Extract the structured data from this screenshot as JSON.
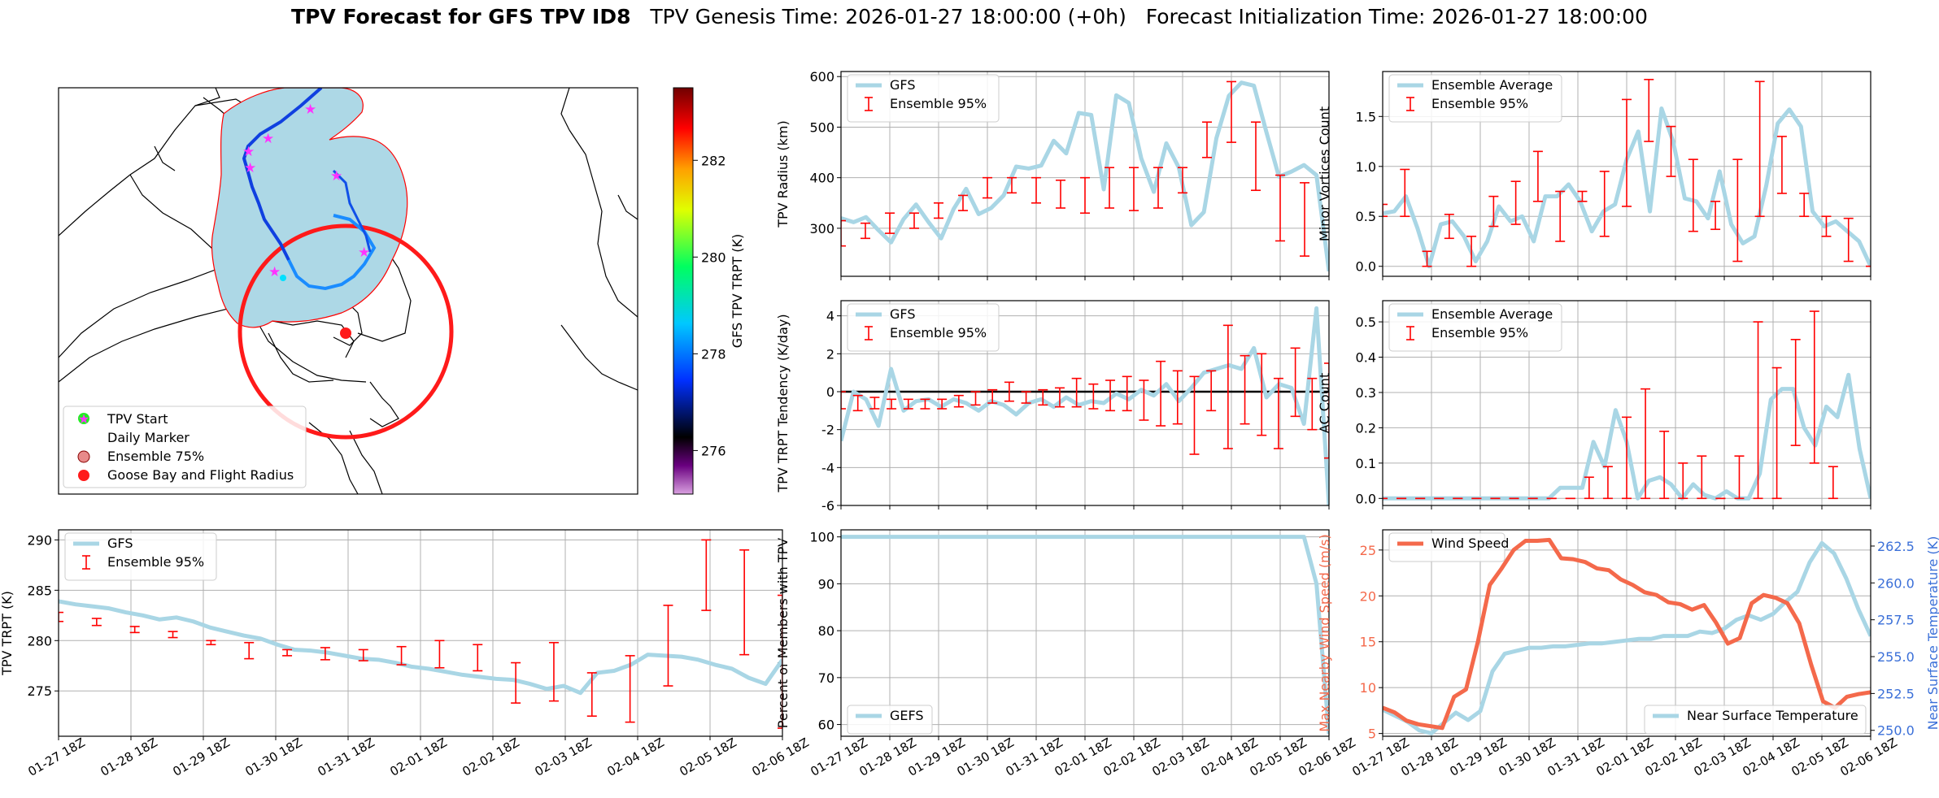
{
  "title": {
    "bold": "TPV Forecast for GFS TPV ID8",
    "genesis": "TPV Genesis Time: 2026-01-27 18:00:00 (+0h)",
    "init": "Forecast Initialization Time: 2026-01-27 18:00:00"
  },
  "colors": {
    "light_blue": "#a9d6e5",
    "red": "#ff0000",
    "orange": "#f4694b",
    "blue": "#3a6fd8"
  },
  "map": {
    "legend": [
      "TPV Start",
      "Daily Marker",
      "Ensemble 75%",
      "Goose Bay and Flight Radius"
    ],
    "colorbar": {
      "label": "GFS TPV TRPT (K)",
      "ticks": [
        "276",
        "278",
        "280",
        "282"
      ],
      "range": [
        275.1,
        283.5
      ]
    }
  },
  "chart_data": [
    {
      "id": "radius",
      "type": "line",
      "ylabel": "TPV Radius (km)",
      "ylim": [
        205,
        610
      ],
      "yticks": [
        300,
        400,
        500,
        600
      ],
      "series_legend": [
        "GFS",
        "Ensemble 95%"
      ],
      "gfs": [
        320,
        312,
        322,
        296,
        272,
        318,
        347,
        312,
        280,
        338,
        378,
        328,
        340,
        365,
        422,
        418,
        424,
        473,
        448,
        528,
        524,
        377,
        563,
        548,
        438,
        372,
        468,
        420,
        306,
        332,
        478,
        562,
        588,
        582,
        490,
        402,
        412,
        425,
        405,
        215
      ],
      "ens_lo": [
        265,
        null,
        280,
        null,
        290,
        null,
        300,
        null,
        320,
        null,
        335,
        null,
        360,
        null,
        370,
        null,
        350,
        null,
        340,
        null,
        330,
        null,
        340,
        null,
        335,
        null,
        340,
        null,
        370,
        null,
        440,
        null,
        470,
        null,
        375,
        null,
        275,
        null,
        245,
        null,
        null
      ],
      "ens_hi": [
        315,
        null,
        310,
        null,
        330,
        null,
        330,
        null,
        350,
        null,
        365,
        null,
        400,
        null,
        400,
        null,
        400,
        null,
        395,
        null,
        400,
        null,
        420,
        null,
        420,
        null,
        420,
        null,
        420,
        null,
        510,
        null,
        590,
        null,
        510,
        null,
        405,
        null,
        390,
        null,
        420
      ]
    },
    {
      "id": "tendency",
      "type": "line",
      "ylabel": "TPV TRPT Tendency (K/day)",
      "ylim": [
        -6,
        4.8
      ],
      "yticks": [
        -6,
        -4,
        -2,
        0,
        2,
        4
      ],
      "series_legend": [
        "GFS",
        "Ensemble 95%"
      ],
      "gfs": [
        -2.6,
        0.0,
        -0.4,
        -1.8,
        1.2,
        -1.0,
        -0.5,
        -0.4,
        -0.8,
        -0.4,
        -0.6,
        -1.0,
        -0.5,
        -0.7,
        -1.2,
        -0.6,
        -0.4,
        -0.8,
        -0.3,
        -0.7,
        -0.5,
        -0.6,
        -0.1,
        -0.4,
        0.1,
        -0.2,
        0.4,
        -0.5,
        0.2,
        1.0,
        1.2,
        1.4,
        1.2,
        2.3,
        -0.3,
        0.4,
        0.2,
        -1.7,
        4.4,
        -6.0
      ],
      "ens_lo": [
        -0.9,
        -1.0,
        -0.9,
        -0.9,
        -0.9,
        -0.9,
        -0.9,
        -0.8,
        -0.7,
        -0.6,
        -0.5,
        -0.6,
        -0.7,
        -0.8,
        -0.8,
        -0.9,
        -1.0,
        -1.0,
        -1.5,
        -1.8,
        -1.7,
        -3.3,
        -1.0,
        -3.0,
        -1.7,
        -2.3,
        -3.0,
        -1.3,
        -2.0,
        -3.5
      ],
      "ens_hi": [
        0.0,
        -0.2,
        -0.3,
        -0.4,
        -0.4,
        -0.4,
        -0.4,
        -0.2,
        0.0,
        0.1,
        0.5,
        0.0,
        0.1,
        0.2,
        0.7,
        0.4,
        0.6,
        0.8,
        0.6,
        1.6,
        1.1,
        0.8,
        1.1,
        3.5,
        1.9,
        2.0,
        0.7,
        2.3,
        0.7,
        1.5
      ],
      "zero_line": 0
    },
    {
      "id": "members",
      "type": "line",
      "ylabel": "Percent of Members with TPV",
      "ylim": [
        57.5,
        101.5
      ],
      "yticks": [
        60,
        70,
        80,
        90,
        100
      ],
      "series_legend": [
        "GEFS"
      ],
      "gefs": [
        100,
        100,
        100,
        100,
        100,
        100,
        100,
        100,
        100,
        100,
        100,
        100,
        100,
        100,
        100,
        100,
        100,
        100,
        100,
        100,
        100,
        100,
        100,
        100,
        100,
        100,
        100,
        100,
        100,
        100,
        100,
        100,
        100,
        100,
        100,
        100,
        100,
        100,
        90,
        58
      ]
    },
    {
      "id": "minor",
      "type": "line",
      "ylabel": "Minor Vortices Count",
      "ylim": [
        -0.1,
        1.95
      ],
      "yticks": [
        0.0,
        0.5,
        1.0,
        1.5
      ],
      "series_legend": [
        "Ensemble Average",
        "Ensemble 95%"
      ],
      "avg": [
        0.53,
        0.55,
        0.7,
        0.38,
        0.0,
        0.42,
        0.45,
        0.3,
        0.05,
        0.25,
        0.6,
        0.45,
        0.5,
        0.25,
        0.7,
        0.7,
        0.82,
        0.65,
        0.35,
        0.55,
        0.62,
        1.07,
        1.35,
        0.55,
        1.58,
        1.25,
        0.68,
        0.65,
        0.48,
        0.95,
        0.42,
        0.23,
        0.3,
        0.8,
        1.43,
        1.57,
        1.4,
        0.55,
        0.4,
        0.45,
        0.35,
        0.25,
        0.0
      ],
      "ens_lo": [
        0.5,
        0.5,
        0.0,
        0.28,
        0.0,
        0.4,
        0.42,
        0.65,
        0.25,
        0.65,
        0.3,
        0.6,
        1.25,
        1.4,
        0.35,
        0.65,
        0.05,
        0.5,
        1.3,
        0.5,
        0.3,
        0.05,
        0.0
      ],
      "ens_hi": [
        0.62,
        0.97,
        0.15,
        0.52,
        0.3,
        0.7,
        0.85,
        1.15,
        0.75,
        0.75,
        0.95,
        1.67,
        1.87,
        0.9,
        1.07,
        0.37,
        1.07,
        1.85,
        0.73,
        0.73,
        0.5,
        0.48,
        0.0
      ]
    },
    {
      "id": "ac",
      "type": "line",
      "ylabel": "AC Count",
      "ylim": [
        -0.02,
        0.56
      ],
      "yticks": [
        0.0,
        0.1,
        0.2,
        0.3,
        0.4,
        0.5
      ],
      "series_legend": [
        "Ensemble Average",
        "Ensemble 95%"
      ],
      "avg": [
        0.0,
        0.0,
        0.0,
        0.0,
        0.0,
        0.0,
        0.0,
        0.0,
        0.0,
        0.0,
        0.0,
        0.0,
        0.0,
        0.0,
        0.0,
        0.0,
        0.03,
        0.03,
        0.03,
        0.16,
        0.09,
        0.25,
        0.16,
        0.0,
        0.05,
        0.06,
        0.04,
        0.0,
        0.04,
        0.01,
        0.0,
        0.02,
        0.0,
        0.0,
        0.07,
        0.28,
        0.31,
        0.31,
        0.2,
        0.15,
        0.26,
        0.23,
        0.35,
        0.14,
        0.0
      ],
      "ens_lo": [
        0.0,
        0.0,
        0.0,
        0.0,
        0.0,
        0.0,
        0.0,
        0.0,
        0.0,
        0.0,
        0.0,
        0.0,
        0.0,
        0.0,
        0.0,
        0.0,
        0.0,
        0.0,
        0.0,
        0.0,
        0.0,
        0.0,
        0.15,
        0.1,
        0.09,
        0.17,
        0.0
      ],
      "ens_hi": [
        0.0,
        0.0,
        0.0,
        0.0,
        0.0,
        0.0,
        0.0,
        0.0,
        0.0,
        0.0,
        0.0,
        0.06,
        0.09,
        0.23,
        0.31,
        0.19,
        0.1,
        0.12,
        0.0,
        0.12,
        0.5,
        0.37,
        0.45,
        0.53,
        0.0
      ]
    },
    {
      "id": "trpt",
      "type": "line",
      "ylabel": "TPV TRPT (K)",
      "ylim": [
        270.5,
        291
      ],
      "yticks": [
        275,
        280,
        285,
        290
      ],
      "series_legend": [
        "GFS",
        "Ensemble 95%"
      ],
      "gfs": [
        283.9,
        283.6,
        283.4,
        283.2,
        282.8,
        282.5,
        282.1,
        282.3,
        281.9,
        281.3,
        280.9,
        280.5,
        280.2,
        279.6,
        279.1,
        279.0,
        278.8,
        278.5,
        278.2,
        278.1,
        277.8,
        277.4,
        277.2,
        276.9,
        276.6,
        276.4,
        276.2,
        276.1,
        275.7,
        275.2,
        275.5,
        274.8,
        276.8,
        277.0,
        277.6,
        278.6,
        278.5,
        278.4,
        278.1,
        277.6,
        277.2,
        276.3,
        275.7,
        278.1
      ],
      "ens_lo": [
        281.9,
        281.5,
        280.8,
        280.3,
        279.6,
        278.2,
        278.5,
        278.1,
        278.0,
        277.6,
        277.3,
        277.0,
        273.8,
        274.0,
        272.5,
        271.9,
        275.5,
        283.0,
        278.6,
        271.3
      ],
      "ens_hi": [
        282.8,
        282.2,
        281.4,
        280.9,
        280.0,
        279.8,
        279.1,
        279.3,
        279.1,
        279.4,
        280.0,
        279.6,
        277.8,
        279.8,
        276.8,
        278.5,
        283.5,
        290.0,
        289.0,
        284.5
      ]
    },
    {
      "id": "wind",
      "type": "line",
      "ylabel": "Max Nearby Wind Speed (m/s)",
      "y2label": "Near Surface Temperature (K)",
      "ylim": [
        4.7,
        27.2
      ],
      "yticks": [
        5,
        10,
        15,
        20,
        25
      ],
      "y2lim": [
        249.6,
        263.6
      ],
      "y2ticks": [
        250.0,
        252.5,
        255.0,
        257.5,
        260.0,
        262.5
      ],
      "series_legend": [
        "Wind Speed",
        "Near Surface Temperature"
      ],
      "wind": [
        7.8,
        7.3,
        6.4,
        6.0,
        5.8,
        5.6,
        9.0,
        9.8,
        15.0,
        21.2,
        23.0,
        25.0,
        26.0,
        26.0,
        26.1,
        24.1,
        24.0,
        23.7,
        23.0,
        22.8,
        21.8,
        21.2,
        20.4,
        20.1,
        19.3,
        19.1,
        18.5,
        19.0,
        17.1,
        14.8,
        15.4,
        19.2,
        20.1,
        19.8,
        19.2,
        17.0,
        12.5,
        8.5,
        7.8,
        9.0,
        9.3,
        9.5
      ],
      "temp": [
        251.4,
        251.0,
        250.6,
        250.0,
        249.8,
        250.5,
        251.2,
        250.7,
        251.3,
        254.0,
        255.2,
        255.4,
        255.6,
        255.6,
        255.7,
        255.7,
        255.8,
        255.9,
        255.9,
        256.0,
        256.1,
        256.2,
        256.2,
        256.4,
        256.4,
        256.4,
        256.7,
        256.6,
        256.9,
        257.5,
        257.8,
        257.5,
        257.9,
        258.7,
        259.4,
        261.4,
        262.7,
        262.0,
        260.3,
        258.2,
        256.4
      ]
    }
  ],
  "x_ticks": [
    "01-27 18Z",
    "01-28 18Z",
    "01-29 18Z",
    "01-30 18Z",
    "01-31 18Z",
    "02-01 18Z",
    "02-02 18Z",
    "02-03 18Z",
    "02-04 18Z",
    "02-05 18Z",
    "02-06 18Z"
  ]
}
